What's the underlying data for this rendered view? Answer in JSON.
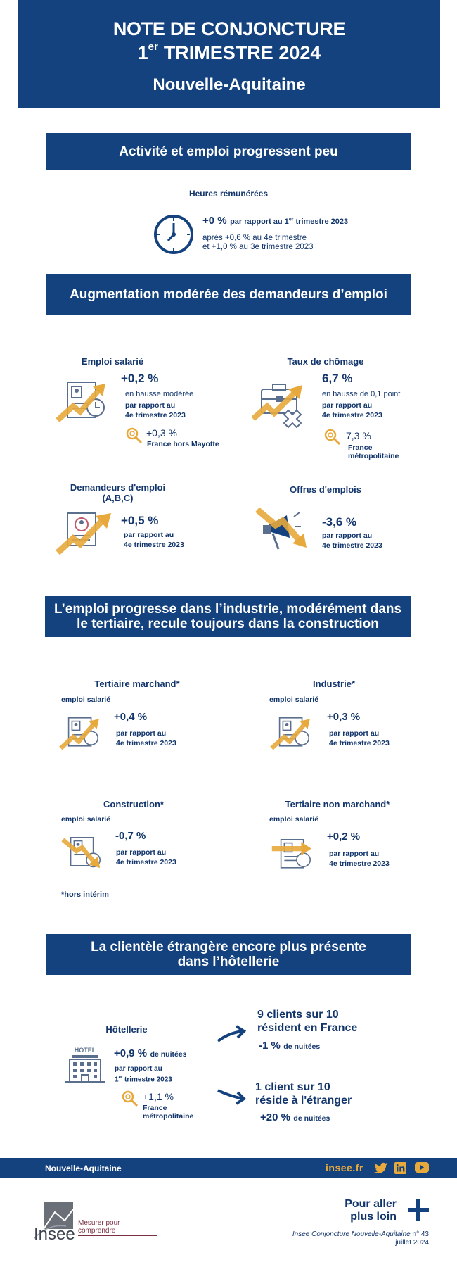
{
  "header": {
    "title_line1": "NOTE DE CONJONCTURE",
    "quarter_number": "1",
    "quarter_suffix": "er",
    "quarter_rest": "TRIMESTRE 2024",
    "region": "Nouvelle-Aquitaine"
  },
  "section1": {
    "title": "Activité et emploi progressent peu",
    "label": "Heures rémunérées",
    "value": "+0 %",
    "comparison_pre": "par rapport au 1",
    "comparison_sup": "er",
    "comparison_post": " trimestre 2023",
    "after_line1": "après +0,6 % au 4e trimestre",
    "after_line2": "et +1,0 % au 3e trimestre 2023"
  },
  "section2": {
    "title": "Augmentation modérée des demandeurs d’emploi",
    "cards": [
      {
        "label": "Emploi salarié",
        "value": "+0,2 %",
        "note": "en hausse modérée",
        "cmp1": "par rapport au",
        "cmp2": "4e trimestre 2023",
        "ref_value": "+0,3 %",
        "ref_label": "France hors Mayotte"
      },
      {
        "label": "Taux de chômage",
        "value": "6,7 %",
        "note": "en hausse de 0,1 point",
        "cmp1": "par rapport au",
        "cmp2": "4e trimestre 2023",
        "ref_value": "7,3 %",
        "ref_label1": "France",
        "ref_label2": "métropolitaine"
      },
      {
        "label1": "Demandeurs d'emploi",
        "label2": "(A,B,C)",
        "value": "+0,5 %",
        "cmp1": "par rapport au",
        "cmp2": "4e trimestre 2023"
      },
      {
        "label": "Offres d'emplois",
        "value": "-3,6 %",
        "cmp1": "par rapport au",
        "cmp2": "4e trimestre 2023"
      }
    ]
  },
  "section3": {
    "title_line1": "L’emploi progresse dans l’industrie, modérément dans",
    "title_line2": "le tertiaire, recule toujours dans la construction",
    "cards": [
      {
        "label": "Tertiaire marchand*",
        "sublabel": "emploi salarié",
        "value": "+0,4 %",
        "cmp1": "par rapport au",
        "cmp2": "4e trimestre 2023"
      },
      {
        "label": "Industrie*",
        "sublabel": "emploi salarié",
        "value": "+0,3 %",
        "cmp1": "par rapport au",
        "cmp2": "4e trimestre 2023"
      },
      {
        "label": "Construction*",
        "sublabel": "emploi salarié",
        "value": "-0,7 %",
        "cmp1": "par rapport au",
        "cmp2": "4e trimestre 2023"
      },
      {
        "label": "Tertiaire non marchand*",
        "sublabel": "emploi salarié",
        "value": "+0,2 %",
        "cmp1": "par rapport au",
        "cmp2": "4e trimestre 2023"
      }
    ],
    "footnote": "*hors intérim"
  },
  "section4": {
    "title_line1": "La clientèle étrangère encore plus présente",
    "title_line2": "dans l’hôtellerie",
    "label": "Hôtellerie",
    "hotel_sign": "HOTEL",
    "value": "+0,9 %",
    "value_unit": "de nuitées",
    "cmp1": "par rapport au",
    "cmp2_pre": "1",
    "cmp2_sup": "er",
    "cmp2_post": " trimestre 2023",
    "ref_value": "+1,1 %",
    "ref_label1": "France",
    "ref_label2": "métropolitaine",
    "france_line1": "9 clients sur 10",
    "france_line2": "résident en France",
    "france_value": "-1 %",
    "france_unit": "de nuitées",
    "abroad_line1": "1 client sur 10",
    "abroad_line2": "réside à l'étranger",
    "abroad_value": "+20 %",
    "abroad_unit": "de nuitées"
  },
  "footer": {
    "region": "Nouvelle-Aquitaine",
    "site": "insee.fr",
    "more_line1": "Pour aller",
    "more_line2": "plus loin",
    "tagline": "Mesurer pour comprendre",
    "logo_text": "Insee",
    "publication": "Insee Conjoncture Nouvelle-Aquitaine",
    "publication_num": "n° 43",
    "date": "juillet 2024"
  },
  "colors": {
    "navy": "#13427e",
    "accent": "#e8a93c",
    "text": "#12356b"
  }
}
